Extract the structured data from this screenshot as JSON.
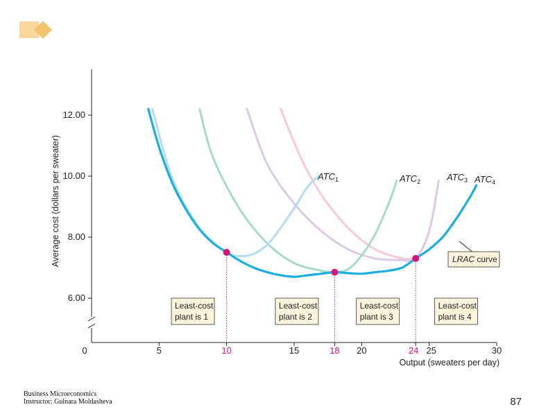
{
  "footer": {
    "line1": "Business Microeconomics",
    "line2": "Instructor: Gulnara Moldasheva",
    "page_number": "87"
  },
  "colors": {
    "lrac": "#1aaee0",
    "atc1": "#b3dcef",
    "atc2": "#a8d9c8",
    "atc3": "#dcc9e3",
    "atc4": "#f7c9d6",
    "point": "#d6157a",
    "box_fill": "#fbf3dc",
    "deco": "#f7d79a"
  },
  "chart_data": {
    "type": "line",
    "xlabel": "Output (sweaters per day)",
    "ylabel": "Average cost (dollars per sweater)",
    "xlim": [
      0,
      30
    ],
    "ylim": [
      5.2,
      13.5
    ],
    "x_ticks": [
      "0",
      "5",
      "10",
      "15",
      "18",
      "20",
      "24",
      "25",
      "30"
    ],
    "x_ticks_highlight": [
      "10",
      "18",
      "24"
    ],
    "y_ticks": [
      "6.00",
      "8.00",
      "10.00",
      "12.00"
    ],
    "axis_break": true,
    "grid": false,
    "series": [
      {
        "name": "ATC",
        "subscript": "1",
        "x": [
          4.5,
          6,
          8,
          10,
          11,
          12,
          13,
          14,
          15,
          16,
          16.8
        ],
        "y": [
          12.2,
          9.9,
          8.3,
          7.5,
          7.38,
          7.45,
          7.75,
          8.3,
          8.95,
          9.65,
          10.0
        ]
      },
      {
        "name": "ATC",
        "subscript": "2",
        "x": [
          8,
          9,
          11,
          13,
          15,
          17,
          18,
          19,
          20,
          21,
          22,
          22.6
        ],
        "y": [
          12.2,
          10.6,
          8.9,
          7.8,
          7.15,
          6.9,
          6.85,
          6.95,
          7.4,
          8.1,
          9.1,
          9.85
        ]
      },
      {
        "name": "ATC",
        "subscript": "3",
        "x": [
          11.5,
          13,
          15,
          17,
          19,
          21,
          23,
          24,
          25,
          25.7
        ],
        "y": [
          12.2,
          10.4,
          9.1,
          8.2,
          7.6,
          7.3,
          7.25,
          7.3,
          8.2,
          9.85
        ]
      },
      {
        "name": "LRAC curve",
        "x": [
          4.2,
          5,
          6,
          7,
          8,
          9,
          10,
          11,
          12,
          13,
          14,
          15,
          16,
          17,
          18,
          19,
          20,
          21,
          22,
          23,
          24,
          25,
          26,
          27,
          28,
          28.5
        ],
        "y": [
          12.2,
          10.95,
          9.75,
          8.9,
          8.25,
          7.8,
          7.5,
          7.22,
          7.0,
          6.85,
          6.75,
          6.7,
          6.75,
          6.8,
          6.85,
          6.82,
          6.8,
          6.85,
          6.9,
          7.0,
          7.3,
          7.6,
          8.0,
          8.6,
          9.3,
          9.7
        ]
      }
    ],
    "points": [
      {
        "x": 10,
        "y": 7.5
      },
      {
        "x": 18,
        "y": 6.85
      },
      {
        "x": 24,
        "y": 7.3
      }
    ],
    "atc4_label": {
      "name": "ATC",
      "subscript": "4"
    },
    "regions": [
      {
        "line1": "Least-cost",
        "line2": "plant is 1",
        "x_center": 7.5
      },
      {
        "line1": "Least-cost",
        "line2": "plant is 2",
        "x_center": 15.2
      },
      {
        "line1": "Least-cost",
        "line2": "plant is 3",
        "x_center": 21.2
      },
      {
        "line1": "Least-cost",
        "line2": "plant is 4",
        "x_center": 27.0
      }
    ]
  }
}
